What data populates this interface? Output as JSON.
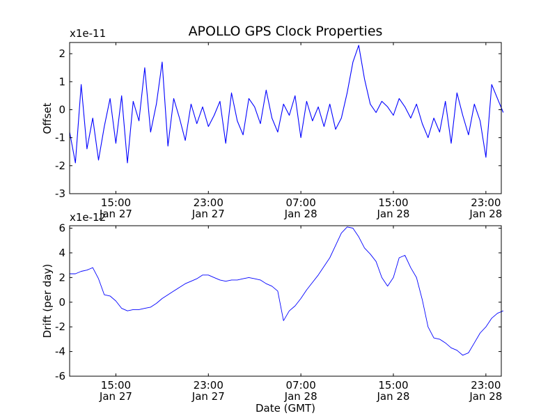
{
  "chart_data": [
    {
      "type": "line",
      "title": "APOLLO GPS Clock Properties",
      "ylabel": "Offset",
      "xlabel": "",
      "y_multiplier": "x1e-11",
      "ylim": [
        -3,
        2.4
      ],
      "yticks": [
        -3,
        -2,
        -1,
        0,
        1,
        2
      ],
      "ytick_labels": [
        "-3",
        "-2",
        "-1",
        "0",
        "1",
        "2"
      ],
      "xlim": [
        "2014-01-27T11:00",
        "2014-01-29T00:20"
      ],
      "xticks": [
        "2014-01-27T15:00",
        "2014-01-27T23:00",
        "2014-01-28T07:00",
        "2014-01-28T15:00",
        "2014-01-28T23:00"
      ],
      "xtick_labels": [
        [
          "15:00",
          "Jan 27"
        ],
        [
          "23:00",
          "Jan 27"
        ],
        [
          "07:00",
          "Jan 28"
        ],
        [
          "15:00",
          "Jan 28"
        ],
        [
          "23:00",
          "Jan 28"
        ]
      ],
      "grid": false,
      "color": "#0000ff",
      "series": [
        {
          "hours": [
            0,
            0.5,
            1,
            1.5,
            2,
            2.5,
            3,
            3.5,
            4,
            4.5,
            5,
            5.5,
            6,
            6.5,
            7,
            7.5,
            8,
            8.5,
            9,
            9.5,
            10,
            10.5,
            11,
            11.5,
            12,
            12.5,
            13,
            13.5,
            14,
            14.5,
            15,
            15.5,
            16,
            16.5,
            17,
            17.5,
            18,
            18.5,
            19,
            19.5,
            20,
            20.5,
            21,
            21.5,
            22,
            22.5,
            23,
            23.5,
            24,
            24.5,
            25,
            25.5,
            26,
            26.5,
            27,
            27.5,
            28,
            28.5,
            29,
            29.5,
            30,
            30.5,
            31,
            31.5,
            32,
            32.5,
            33,
            33.5,
            34,
            34.5,
            35,
            35.5,
            36,
            36.5,
            37,
            37.5
          ],
          "values": [
            -0.8,
            -1.9,
            0.9,
            -1.4,
            -0.3,
            -1.8,
            -0.6,
            0.4,
            -1.2,
            0.5,
            -1.9,
            0.3,
            -0.4,
            1.5,
            -0.8,
            0.2,
            1.7,
            -1.3,
            0.4,
            -0.3,
            -1.1,
            0.2,
            -0.5,
            0.1,
            -0.6,
            -0.2,
            0.3,
            -1.2,
            0.6,
            -0.4,
            -0.9,
            0.4,
            0.1,
            -0.5,
            0.7,
            -0.3,
            -0.8,
            0.2,
            -0.2,
            0.5,
            -1.0,
            0.3,
            -0.4,
            0.1,
            -0.6,
            0.2,
            -0.7,
            -0.3,
            0.6,
            1.7,
            2.3,
            1.1,
            0.2,
            -0.1,
            0.3,
            0.1,
            -0.2,
            0.4,
            0.1,
            -0.3,
            0.2,
            -0.5,
            -1.0,
            -0.3,
            -0.8,
            0.3,
            -1.2,
            0.6,
            -0.2,
            -0.9,
            0.2,
            -0.4,
            -1.7,
            0.9,
            0.4,
            -0.1
          ]
        }
      ]
    },
    {
      "type": "line",
      "title": "",
      "ylabel": "Drift (per day)",
      "xlabel": "Date (GMT)",
      "y_multiplier": "x1e-12",
      "ylim": [
        -6,
        6.2
      ],
      "yticks": [
        -6,
        -4,
        -2,
        0,
        2,
        4,
        6
      ],
      "ytick_labels": [
        "-6",
        "-4",
        "-2",
        "0",
        "2",
        "4",
        "6"
      ],
      "xlim": [
        "2014-01-27T11:00",
        "2014-01-29T00:20"
      ],
      "xticks": [
        "2014-01-27T15:00",
        "2014-01-27T23:00",
        "2014-01-28T07:00",
        "2014-01-28T15:00",
        "2014-01-28T23:00"
      ],
      "xtick_labels": [
        [
          "15:00",
          "Jan 27"
        ],
        [
          "23:00",
          "Jan 27"
        ],
        [
          "07:00",
          "Jan 28"
        ],
        [
          "15:00",
          "Jan 28"
        ],
        [
          "23:00",
          "Jan 28"
        ]
      ],
      "grid": false,
      "color": "#0000ff",
      "series": [
        {
          "hours": [
            0,
            0.5,
            1,
            1.5,
            2,
            2.5,
            3,
            3.5,
            4,
            4.5,
            5,
            5.5,
            6,
            6.5,
            7,
            7.5,
            8,
            8.5,
            9,
            9.5,
            10,
            10.5,
            11,
            11.5,
            12,
            12.5,
            13,
            13.5,
            14,
            14.5,
            15,
            15.5,
            16,
            16.5,
            17,
            17.5,
            18,
            18.5,
            19,
            19.5,
            20,
            20.5,
            21,
            21.5,
            22,
            22.5,
            23,
            23.5,
            24,
            24.5,
            25,
            25.5,
            26,
            26.5,
            27,
            27.5,
            28,
            28.5,
            29,
            29.5,
            30,
            30.5,
            31,
            31.5,
            32,
            32.5,
            33,
            33.5,
            34,
            34.5,
            35,
            35.5,
            36,
            36.5,
            37,
            37.5
          ],
          "values": [
            2.3,
            2.3,
            2.5,
            2.6,
            2.8,
            1.9,
            0.6,
            0.5,
            0.1,
            -0.5,
            -0.7,
            -0.6,
            -0.6,
            -0.5,
            -0.4,
            -0.1,
            0.3,
            0.6,
            0.9,
            1.2,
            1.5,
            1.7,
            1.9,
            2.2,
            2.2,
            2.0,
            1.8,
            1.7,
            1.8,
            1.8,
            1.9,
            2.0,
            1.9,
            1.8,
            1.5,
            1.3,
            0.9,
            -1.5,
            -0.7,
            -0.3,
            0.3,
            1.0,
            1.6,
            2.2,
            2.9,
            3.6,
            4.6,
            5.6,
            6.1,
            6.0,
            5.3,
            4.4,
            3.9,
            3.3,
            2.0,
            1.3,
            2.0,
            3.6,
            3.8,
            2.8,
            2.0,
            0.2,
            -2.0,
            -2.9,
            -3.0,
            -3.3,
            -3.7,
            -3.9,
            -4.3,
            -4.1,
            -3.3,
            -2.5,
            -2.0,
            -1.3,
            -0.9,
            -0.7
          ]
        }
      ]
    }
  ]
}
